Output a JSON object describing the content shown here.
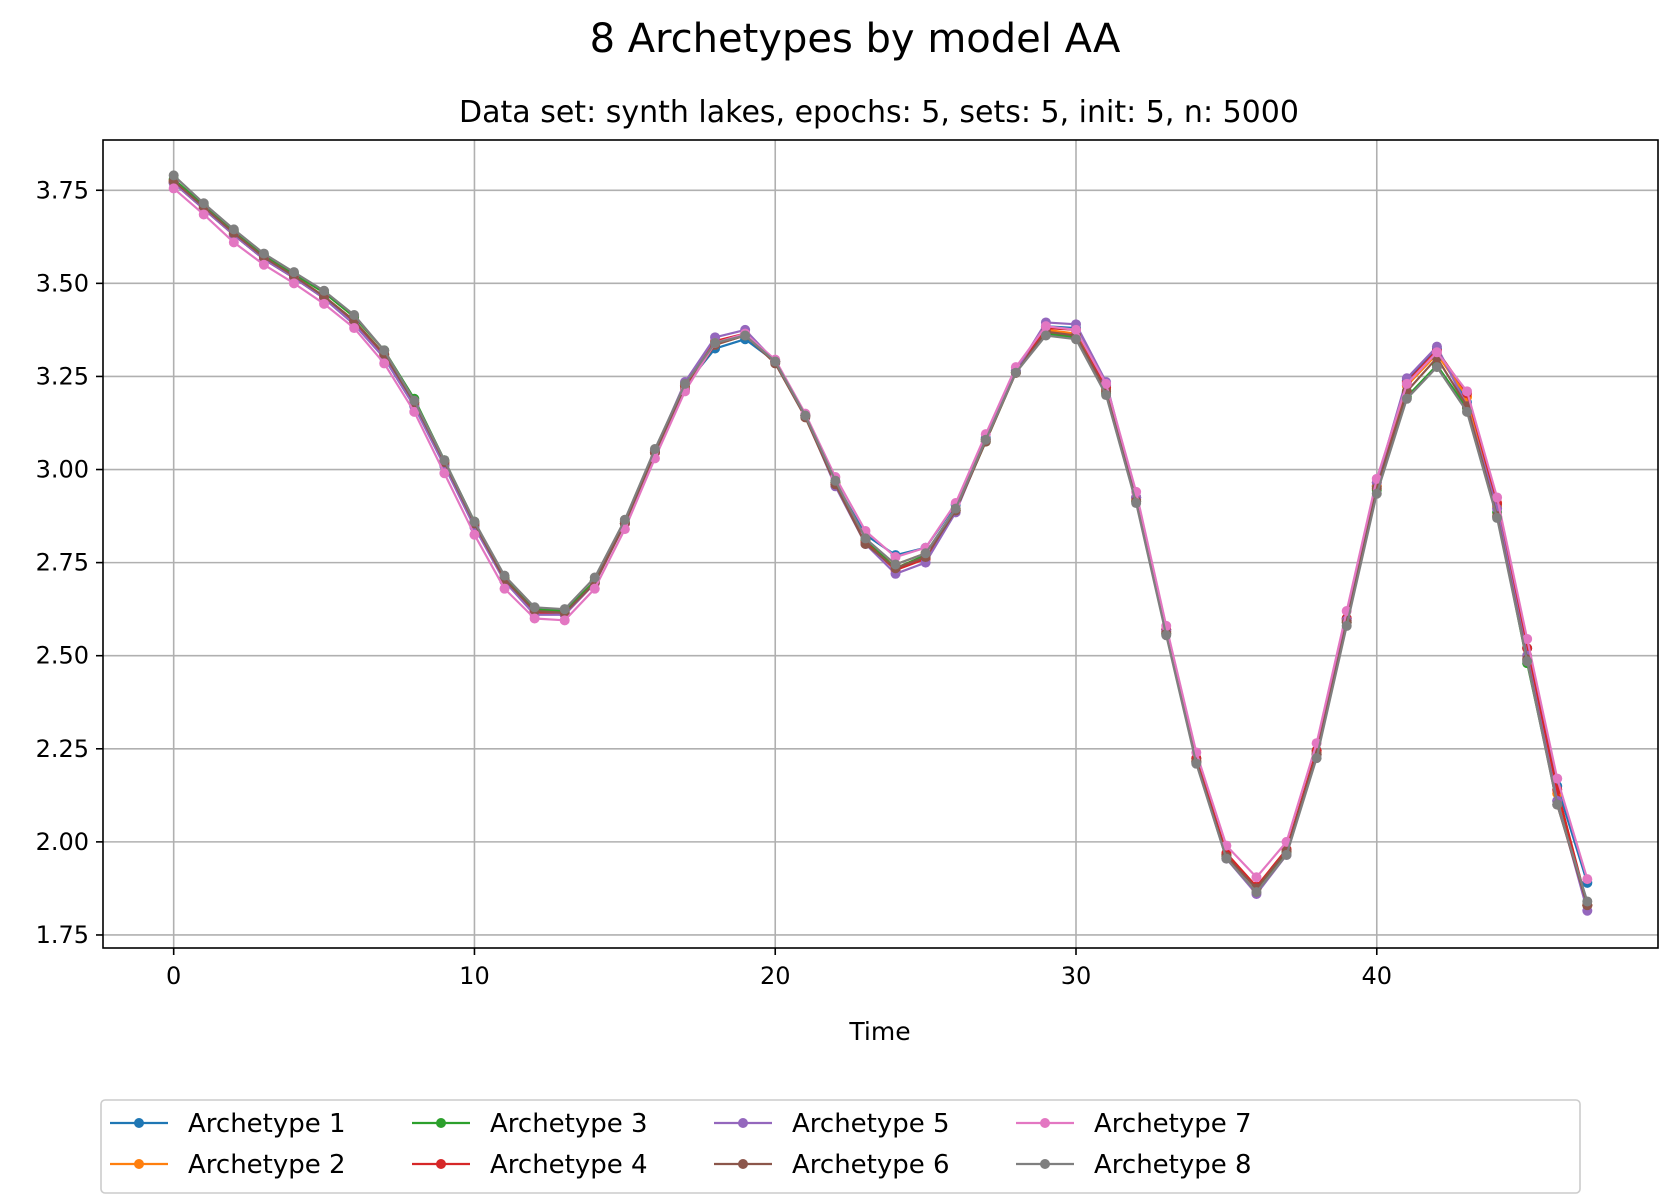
{
  "chart_data": {
    "type": "line",
    "title": "8 Archetypes by model AA",
    "subtitle": "Data set: synth lakes, epochs: 5, sets: 5, init: 5, n: 5000",
    "xlabel": "Time",
    "ylabel": "",
    "xlim": [
      -2.35,
      49.35
    ],
    "ylim": [
      1.715,
      3.885
    ],
    "xticks": [
      0,
      10,
      20,
      30,
      40
    ],
    "xtick_labels": [
      "0",
      "10",
      "20",
      "30",
      "40"
    ],
    "yticks": [
      1.75,
      2.0,
      2.25,
      2.5,
      2.75,
      3.0,
      3.25,
      3.5,
      3.75
    ],
    "ytick_labels": [
      "1.75",
      "2.00",
      "2.25",
      "2.50",
      "2.75",
      "3.00",
      "3.25",
      "3.50",
      "3.75"
    ],
    "grid": true,
    "legend_position": "bottom",
    "legend_columns": 5,
    "x": [
      0,
      1,
      2,
      3,
      4,
      5,
      6,
      7,
      8,
      9,
      10,
      11,
      12,
      13,
      14,
      15,
      16,
      17,
      18,
      19,
      20,
      21,
      22,
      23,
      24,
      25,
      26,
      27,
      28,
      29,
      30,
      31,
      32,
      33,
      34,
      35,
      36,
      37,
      38,
      39,
      40,
      41,
      42,
      43,
      44,
      45,
      46,
      47
    ],
    "series": [
      {
        "name": "Archetype 1",
        "color": "#1f77b4",
        "values": [
          3.77,
          3.7,
          3.63,
          3.565,
          3.515,
          3.46,
          3.39,
          3.3,
          3.17,
          3.01,
          2.85,
          2.7,
          2.615,
          2.615,
          2.7,
          2.855,
          3.05,
          3.225,
          3.325,
          3.35,
          3.29,
          3.145,
          2.965,
          2.825,
          2.77,
          2.79,
          2.905,
          3.085,
          3.265,
          3.385,
          3.38,
          3.225,
          2.925,
          2.57,
          2.225,
          1.965,
          1.875,
          1.975,
          2.245,
          2.6,
          2.955,
          3.24,
          3.325,
          3.18,
          2.905,
          2.52,
          2.15,
          1.89
        ]
      },
      {
        "name": "Archetype 2",
        "color": "#ff7f0e",
        "values": [
          3.775,
          3.705,
          3.635,
          3.57,
          3.52,
          3.465,
          3.4,
          3.31,
          3.18,
          3.02,
          2.855,
          2.705,
          2.62,
          2.62,
          2.7,
          2.855,
          3.05,
          3.225,
          3.335,
          3.36,
          3.29,
          3.145,
          2.965,
          2.81,
          2.745,
          2.775,
          2.895,
          3.08,
          3.26,
          3.375,
          3.365,
          3.215,
          2.92,
          2.565,
          2.22,
          1.965,
          1.875,
          1.975,
          2.24,
          2.595,
          2.955,
          3.225,
          3.31,
          3.195,
          2.9,
          2.5,
          2.13,
          1.83
        ]
      },
      {
        "name": "Archetype 3",
        "color": "#2ca02c",
        "values": [
          3.78,
          3.71,
          3.64,
          3.575,
          3.525,
          3.475,
          3.41,
          3.32,
          3.19,
          3.025,
          2.86,
          2.71,
          2.625,
          2.62,
          2.7,
          2.86,
          3.05,
          3.225,
          3.34,
          3.36,
          3.29,
          3.145,
          2.965,
          2.81,
          2.735,
          2.77,
          2.89,
          3.075,
          3.26,
          3.365,
          3.355,
          3.205,
          2.915,
          2.56,
          2.215,
          1.965,
          1.875,
          1.97,
          2.235,
          2.59,
          2.945,
          3.195,
          3.28,
          3.165,
          2.885,
          2.48,
          2.11,
          1.83
        ]
      },
      {
        "name": "Archetype 4",
        "color": "#d62728",
        "values": [
          3.77,
          3.7,
          3.63,
          3.565,
          3.515,
          3.46,
          3.395,
          3.305,
          3.175,
          3.015,
          2.85,
          2.7,
          2.615,
          2.61,
          2.695,
          2.855,
          3.045,
          3.225,
          3.345,
          3.365,
          3.29,
          3.145,
          2.96,
          2.805,
          2.73,
          2.76,
          2.89,
          3.08,
          3.26,
          3.38,
          3.375,
          3.22,
          2.925,
          2.57,
          2.225,
          1.97,
          1.88,
          1.98,
          2.245,
          2.6,
          2.965,
          3.235,
          3.32,
          3.205,
          2.91,
          2.52,
          2.14,
          1.83
        ]
      },
      {
        "name": "Archetype 5",
        "color": "#9467bd",
        "values": [
          3.77,
          3.7,
          3.63,
          3.565,
          3.515,
          3.46,
          3.39,
          3.3,
          3.17,
          3.01,
          2.845,
          2.7,
          2.61,
          2.61,
          2.695,
          2.855,
          3.05,
          3.235,
          3.355,
          3.375,
          3.29,
          3.145,
          2.955,
          2.8,
          2.72,
          2.75,
          2.885,
          3.08,
          3.265,
          3.395,
          3.39,
          3.235,
          2.925,
          2.565,
          2.215,
          1.955,
          1.86,
          1.965,
          2.235,
          2.595,
          2.965,
          3.245,
          3.33,
          3.17,
          2.895,
          2.5,
          2.11,
          1.815
        ]
      },
      {
        "name": "Archetype 6",
        "color": "#8c564b",
        "values": [
          3.775,
          3.705,
          3.635,
          3.57,
          3.52,
          3.465,
          3.4,
          3.31,
          3.18,
          3.02,
          2.855,
          2.705,
          2.62,
          2.615,
          2.695,
          2.855,
          3.045,
          3.215,
          3.335,
          3.36,
          3.285,
          3.14,
          2.96,
          2.8,
          2.735,
          2.765,
          2.89,
          3.075,
          3.26,
          3.37,
          3.36,
          3.21,
          2.915,
          2.56,
          2.215,
          1.96,
          1.875,
          1.975,
          2.235,
          2.59,
          2.95,
          3.21,
          3.3,
          3.17,
          2.875,
          2.49,
          2.1,
          1.83
        ]
      },
      {
        "name": "Archetype 7",
        "color": "#e377c2",
        "values": [
          3.755,
          3.685,
          3.61,
          3.55,
          3.5,
          3.445,
          3.38,
          3.285,
          3.155,
          2.99,
          2.825,
          2.68,
          2.6,
          2.595,
          2.68,
          2.84,
          3.03,
          3.21,
          3.34,
          3.365,
          3.295,
          3.15,
          2.98,
          2.835,
          2.765,
          2.79,
          2.91,
          3.095,
          3.275,
          3.385,
          3.375,
          3.23,
          2.94,
          2.58,
          2.24,
          1.99,
          1.905,
          2.0,
          2.265,
          2.62,
          2.975,
          3.23,
          3.315,
          3.21,
          2.925,
          2.545,
          2.17,
          1.9
        ]
      },
      {
        "name": "Archetype 8",
        "color": "#7f7f7f",
        "values": [
          3.79,
          3.715,
          3.645,
          3.58,
          3.53,
          3.48,
          3.415,
          3.32,
          3.185,
          3.025,
          2.86,
          2.715,
          2.63,
          2.625,
          2.71,
          2.865,
          3.055,
          3.23,
          3.34,
          3.36,
          3.29,
          3.145,
          2.97,
          2.815,
          2.745,
          2.775,
          2.895,
          3.08,
          3.26,
          3.36,
          3.35,
          3.2,
          2.91,
          2.555,
          2.21,
          1.955,
          1.865,
          1.965,
          2.225,
          2.58,
          2.935,
          3.19,
          3.275,
          3.155,
          2.87,
          2.485,
          2.1,
          1.84
        ]
      }
    ]
  }
}
